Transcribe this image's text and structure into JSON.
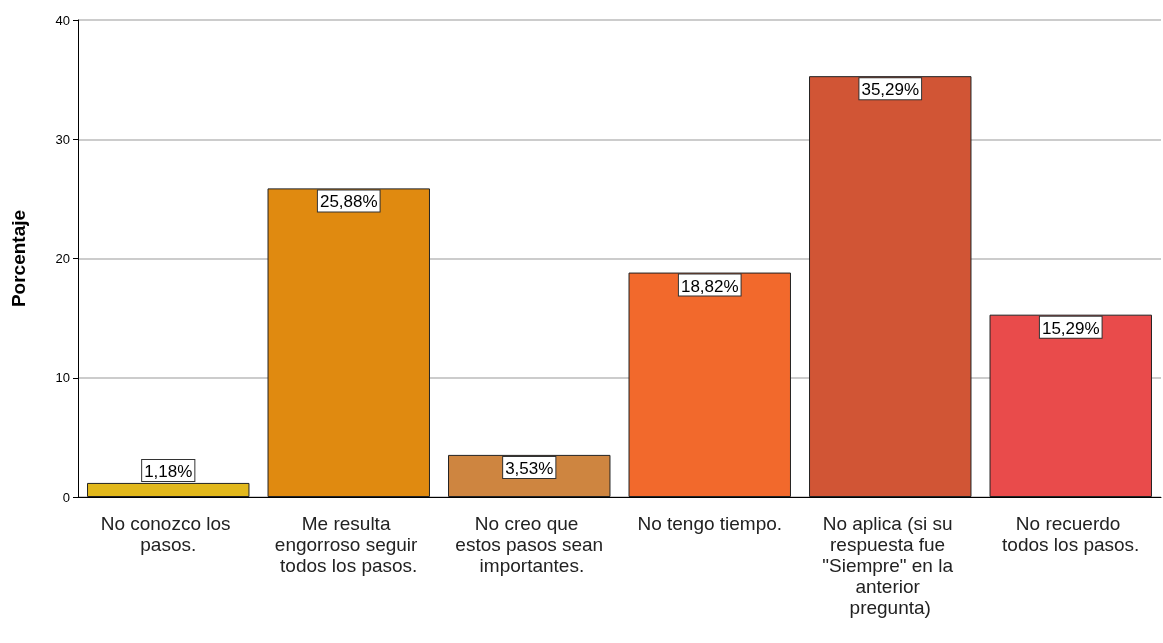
{
  "chart_data": {
    "type": "bar",
    "ylabel": "Porcentaje",
    "categories": [
      "No conozco los pasos.",
      "Me resulta engorroso seguir todos los pasos.",
      "No creo que estos pasos sean importantes.",
      "No tengo tiempo.",
      "No aplica (si su respuesta fue \"Siempre\" en la anterior pregunta)",
      "No recuerdo todos los pasos."
    ],
    "values": [
      1.18,
      25.88,
      3.53,
      18.82,
      35.29,
      15.29
    ],
    "value_labels": [
      "1,18%",
      "25,88%",
      "3,53%",
      "18,82%",
      "35,29%",
      "15,29%"
    ],
    "colors": [
      "#e2b81c",
      "#e08a10",
      "#ce8540",
      "#f2692c",
      "#d15535",
      "#e94b4b"
    ],
    "ylim": [
      0,
      40
    ],
    "yticks": [
      0,
      10,
      20,
      30,
      40
    ],
    "grid": "y"
  }
}
